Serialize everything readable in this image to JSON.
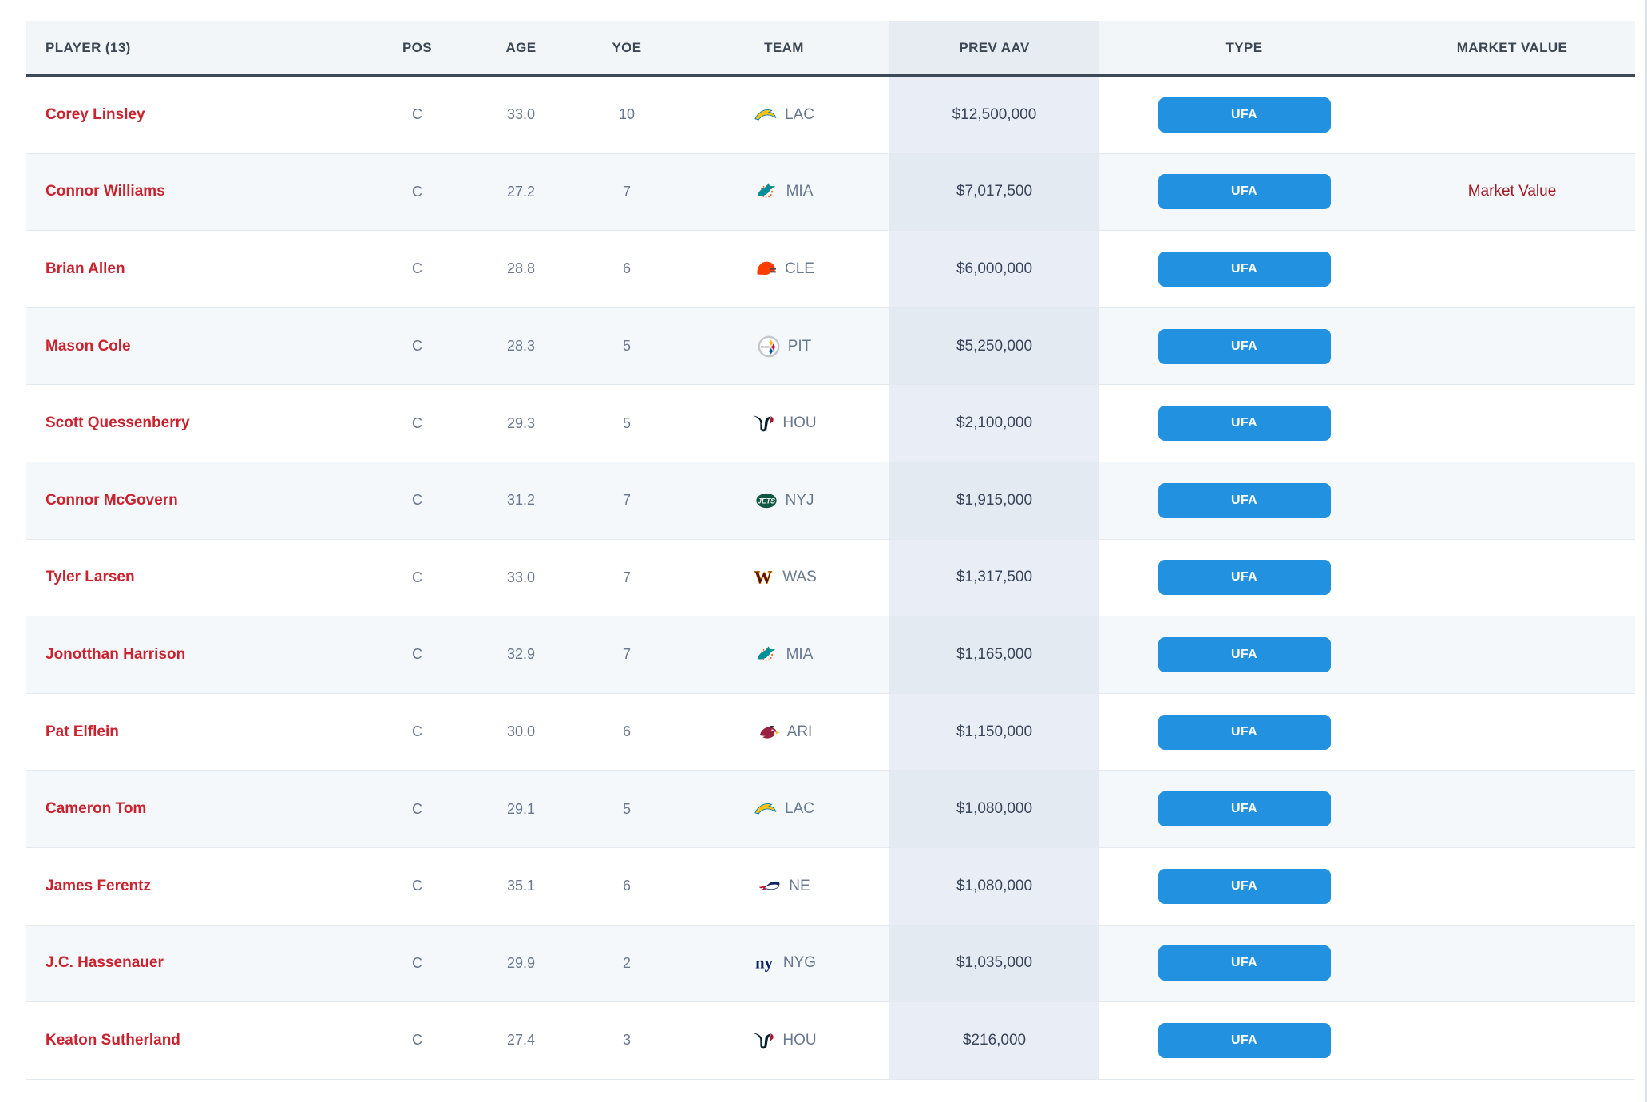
{
  "table": {
    "columns": [
      {
        "key": "player",
        "label": "PLAYER (13)"
      },
      {
        "key": "pos",
        "label": "POS"
      },
      {
        "key": "age",
        "label": "AGE"
      },
      {
        "key": "yoe",
        "label": "YOE"
      },
      {
        "key": "team",
        "label": "TEAM"
      },
      {
        "key": "prev_aav",
        "label": "PREV AAV"
      },
      {
        "key": "type",
        "label": "TYPE"
      },
      {
        "key": "market_value",
        "label": "MARKET VALUE"
      }
    ],
    "rows": [
      {
        "player": "Corey Linsley",
        "pos": "C",
        "age": "33.0",
        "yoe": "10",
        "team": "LAC",
        "prev_aav": "$12,500,000",
        "type": "UFA",
        "market_value": ""
      },
      {
        "player": "Connor Williams",
        "pos": "C",
        "age": "27.2",
        "yoe": "7",
        "team": "MIA",
        "prev_aav": "$7,017,500",
        "type": "UFA",
        "market_value": "Market Value"
      },
      {
        "player": "Brian Allen",
        "pos": "C",
        "age": "28.8",
        "yoe": "6",
        "team": "CLE",
        "prev_aav": "$6,000,000",
        "type": "UFA",
        "market_value": ""
      },
      {
        "player": "Mason Cole",
        "pos": "C",
        "age": "28.3",
        "yoe": "5",
        "team": "PIT",
        "prev_aav": "$5,250,000",
        "type": "UFA",
        "market_value": ""
      },
      {
        "player": "Scott Quessenberry",
        "pos": "C",
        "age": "29.3",
        "yoe": "5",
        "team": "HOU",
        "prev_aav": "$2,100,000",
        "type": "UFA",
        "market_value": ""
      },
      {
        "player": "Connor McGovern",
        "pos": "C",
        "age": "31.2",
        "yoe": "7",
        "team": "NYJ",
        "prev_aav": "$1,915,000",
        "type": "UFA",
        "market_value": ""
      },
      {
        "player": "Tyler Larsen",
        "pos": "C",
        "age": "33.0",
        "yoe": "7",
        "team": "WAS",
        "prev_aav": "$1,317,500",
        "type": "UFA",
        "market_value": ""
      },
      {
        "player": "Jonotthan Harrison",
        "pos": "C",
        "age": "32.9",
        "yoe": "7",
        "team": "MIA",
        "prev_aav": "$1,165,000",
        "type": "UFA",
        "market_value": ""
      },
      {
        "player": "Pat Elflein",
        "pos": "C",
        "age": "30.0",
        "yoe": "6",
        "team": "ARI",
        "prev_aav": "$1,150,000",
        "type": "UFA",
        "market_value": ""
      },
      {
        "player": "Cameron Tom",
        "pos": "C",
        "age": "29.1",
        "yoe": "5",
        "team": "LAC",
        "prev_aav": "$1,080,000",
        "type": "UFA",
        "market_value": ""
      },
      {
        "player": "James Ferentz",
        "pos": "C",
        "age": "35.1",
        "yoe": "6",
        "team": "NE",
        "prev_aav": "$1,080,000",
        "type": "UFA",
        "market_value": ""
      },
      {
        "player": "J.C. Hassenauer",
        "pos": "C",
        "age": "29.9",
        "yoe": "2",
        "team": "NYG",
        "prev_aav": "$1,035,000",
        "type": "UFA",
        "market_value": ""
      },
      {
        "player": "Keaton Sutherland",
        "pos": "C",
        "age": "27.4",
        "yoe": "3",
        "team": "HOU",
        "prev_aav": "$216,000",
        "type": "UFA",
        "market_value": ""
      }
    ]
  },
  "colors": {
    "type_badge_blue": "#2191e0",
    "player_link_red": "#c9232f",
    "market_value_red": "#a01823",
    "header_underline": "#3d4956",
    "prev_aav_column_tint": "#e9eef6",
    "row_alt_background": "#f5f8fa"
  }
}
